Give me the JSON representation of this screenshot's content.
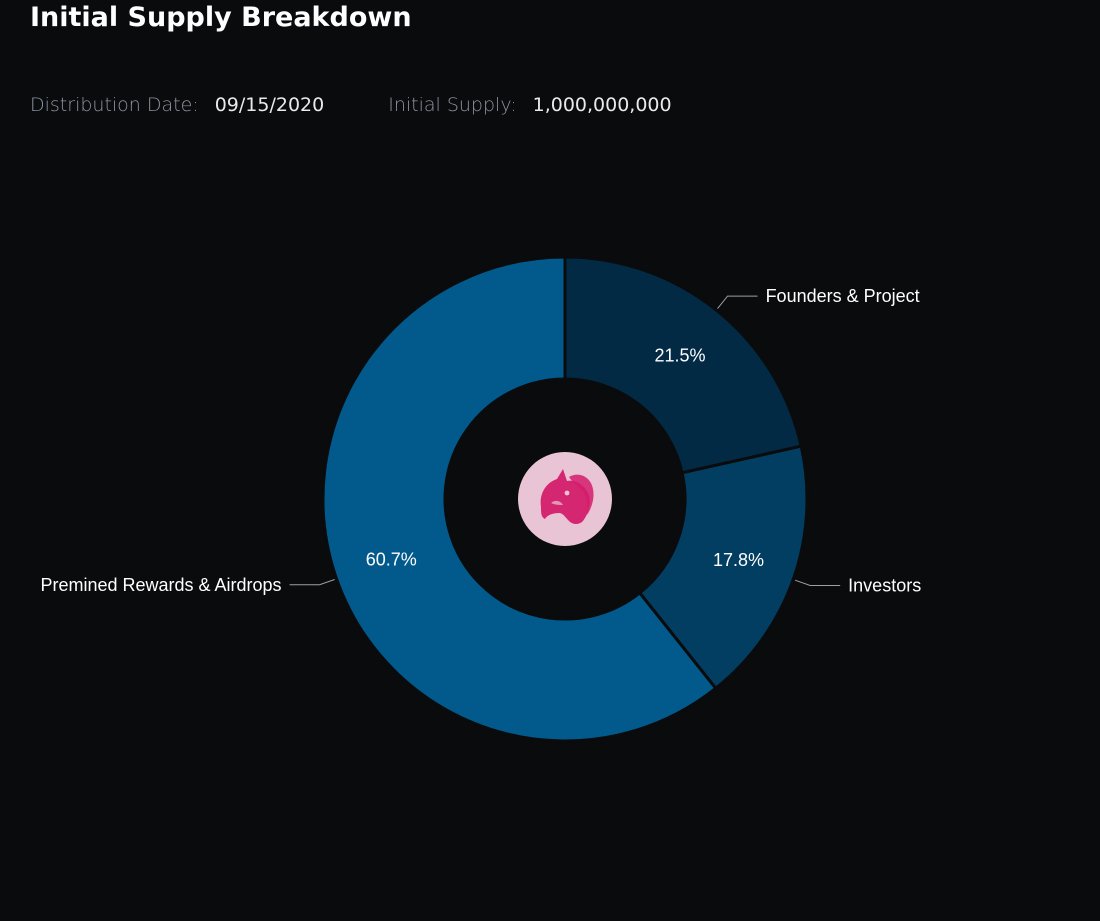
{
  "header": {
    "title": "Initial Supply Breakdown"
  },
  "meta": {
    "distribution_date_label": "Distribution Date:",
    "distribution_date_value": "09/15/2020",
    "initial_supply_label": "Initial Supply:",
    "initial_supply_value": "1,000,000,000"
  },
  "center_logo": {
    "icon": "uniswap-unicorn-icon",
    "background": "#e8c4d4",
    "color": "#d41d6c"
  },
  "colors": {
    "background": "#0a0b0d",
    "slice_border": "#0a0b0d",
    "leader_line": "#9aa0a8"
  },
  "chart_data": {
    "type": "pie",
    "donut": true,
    "title": "",
    "categories": [
      "Founders & Project",
      "Investors",
      "Premined Rewards & Airdrops"
    ],
    "values": [
      21.5,
      17.8,
      60.7
    ],
    "value_labels": [
      "21.5%",
      "17.8%",
      "60.7%"
    ],
    "colors": [
      "#022a45",
      "#023e62",
      "#025a8c"
    ],
    "start_angle_deg": 0,
    "direction": "clockwise",
    "label_placement": "outside-with-leader-lines",
    "legend": "none"
  }
}
